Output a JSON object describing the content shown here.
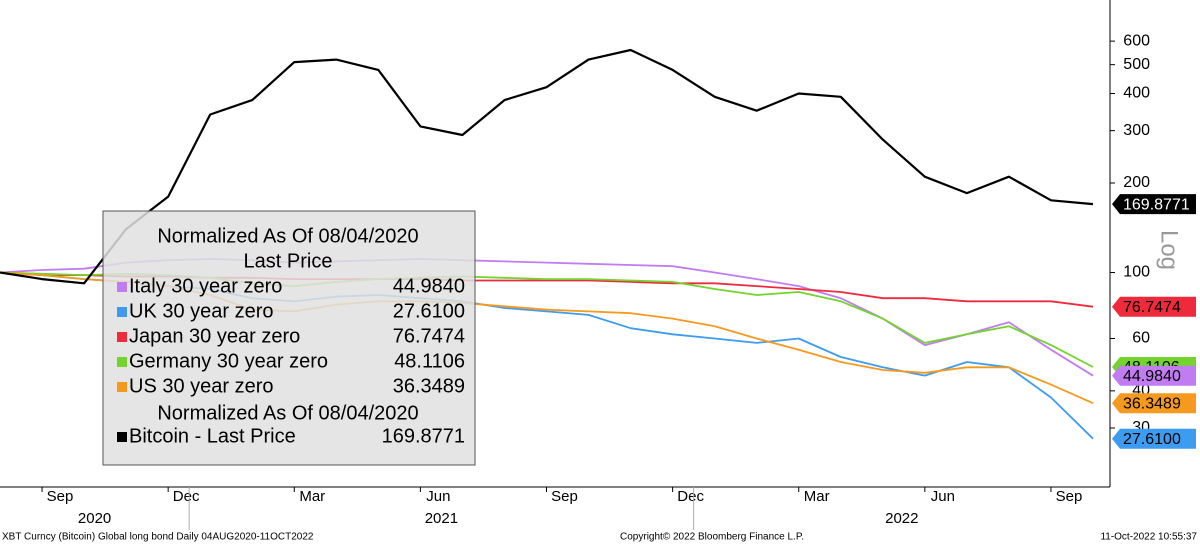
{
  "chart_data": {
    "type": "line",
    "log_scale": true,
    "grid": true,
    "scale_label": "Log",
    "legend_title": "Normalized As Of 08/04/2020",
    "legend_subtitle": "Last Price",
    "legend_title_2": "Normalized As Of 08/04/2020",
    "x": [
      "2020-08",
      "2020-09",
      "2020-10",
      "2020-11",
      "2020-12",
      "2021-01",
      "2021-02",
      "2021-03",
      "2021-04",
      "2021-05",
      "2021-06",
      "2021-07",
      "2021-08",
      "2021-09",
      "2021-10",
      "2021-11",
      "2021-12",
      "2022-01",
      "2022-02",
      "2022-03",
      "2022-04",
      "2022-05",
      "2022-06",
      "2022-07",
      "2022-08",
      "2022-09",
      "2022-10"
    ],
    "xticks": [
      {
        "value": "2020-09",
        "label": "Sep"
      },
      {
        "value": "2020-12",
        "label": "Dec"
      },
      {
        "value": "2021-03",
        "label": "Mar"
      },
      {
        "value": "2021-06",
        "label": "Jun"
      },
      {
        "value": "2021-09",
        "label": "Sep"
      },
      {
        "value": "2021-12",
        "label": "Dec"
      },
      {
        "value": "2022-03",
        "label": "Mar"
      },
      {
        "value": "2022-06",
        "label": "Jun"
      },
      {
        "value": "2022-09",
        "label": "Sep"
      }
    ],
    "year_labels": [
      "2020",
      "2021",
      "2022"
    ],
    "ylim": [
      19,
      825
    ],
    "yticks": [
      30,
      40,
      60,
      100,
      200,
      300,
      400,
      500,
      600
    ],
    "series": [
      {
        "name": "Italy 30 year zero",
        "color": "#c27cf2",
        "last_value_label": "44.9840",
        "values": [
          100,
          102,
          103,
          108,
          110,
          111,
          110,
          108,
          109,
          110,
          111,
          110,
          109,
          108,
          107,
          106,
          105,
          100,
          95,
          90,
          82,
          70,
          57,
          62,
          68,
          55,
          44.984
        ]
      },
      {
        "name": "UK 30 year zero",
        "color": "#3d9bf0",
        "last_value_label": "27.6100",
        "values": [
          100,
          98,
          95,
          93,
          90,
          88,
          82,
          80,
          83,
          84,
          82,
          80,
          76,
          74,
          72,
          65,
          62,
          60,
          58,
          60,
          52,
          48,
          45,
          50,
          48,
          38,
          27.61
        ]
      },
      {
        "name": "Japan 30 year zero",
        "color": "#ee2a3c",
        "last_value_label": "76.7474",
        "values": [
          100,
          98,
          98,
          97,
          97,
          96,
          96,
          95,
          95,
          95,
          95,
          94,
          94,
          94,
          94,
          93,
          92,
          92,
          90,
          88,
          86,
          82,
          82,
          80,
          80,
          80,
          76.7474
        ]
      },
      {
        "name": "Germany 30 year zero",
        "color": "#72d42c",
        "last_value_label": "48.1106",
        "values": [
          100,
          99,
          98,
          99,
          98,
          96,
          92,
          90,
          93,
          95,
          96,
          97,
          96,
          95,
          95,
          94,
          93,
          88,
          84,
          86,
          80,
          70,
          58,
          62,
          66,
          57,
          48.1106
        ]
      },
      {
        "name": "US 30 year zero",
        "color": "#f59a1f",
        "last_value_label": "36.3489",
        "values": [
          100,
          98,
          95,
          93,
          90,
          84,
          75,
          74,
          78,
          80,
          80,
          79,
          77,
          75,
          74,
          73,
          70,
          66,
          60,
          55,
          50,
          47,
          46,
          48,
          48,
          42,
          36.3489
        ]
      },
      {
        "name": "Bitcoin - Last Price",
        "color": "#000000",
        "last_value_label": "169.8771",
        "values": [
          100,
          95,
          92,
          140,
          180,
          340,
          380,
          510,
          520,
          480,
          310,
          290,
          380,
          420,
          520,
          560,
          480,
          390,
          350,
          400,
          390,
          280,
          210,
          185,
          210,
          175,
          169.8771
        ]
      }
    ]
  },
  "footer": {
    "left": "XBT Curncy (Bitcoin) Global long bond  Daily 04AUG2020-11OCT2022",
    "center": "Copyright© 2022 Bloomberg Finance L.P.",
    "right": "11-Oct-2022 10:55:37"
  }
}
